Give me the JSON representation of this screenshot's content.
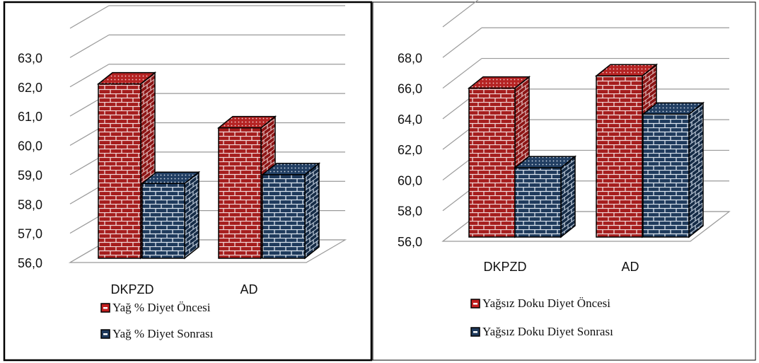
{
  "chart_data": [
    {
      "type": "bar",
      "categories": [
        "DKPZD",
        "AD"
      ],
      "series": [
        {
          "name": "Yağ % Diyet Öncesi",
          "values": [
            62.1,
            60.6
          ],
          "color": "#b22222"
        },
        {
          "name": "Yağ % Diyet Sonrası",
          "values": [
            58.7,
            59.0
          ],
          "color": "#1f3a5c"
        }
      ],
      "ylim": [
        56,
        63
      ],
      "ygrid_top": 64,
      "ystep": 1,
      "yticks": [
        "56,0",
        "57,0",
        "58,0",
        "59,0",
        "60,0",
        "61,0",
        "62,0",
        "63,0"
      ],
      "legend": "bottom",
      "grid": true
    },
    {
      "type": "bar",
      "categories": [
        "DKPZD",
        "AD"
      ],
      "series": [
        {
          "name": "Yağsız Doku Diyet Öncesi",
          "values": [
            66.0,
            66.8
          ],
          "color": "#b22222"
        },
        {
          "name": "Yağsız Doku Diyet Sonrası",
          "values": [
            60.8,
            64.3
          ],
          "color": "#1f3a5c"
        }
      ],
      "ylim": [
        56,
        68
      ],
      "ygrid_top": 70,
      "ystep": 2,
      "yticks": [
        "56,0",
        "58,0",
        "60,0",
        "62,0",
        "64,0",
        "66,0",
        "68,0"
      ],
      "legend": "bottom",
      "grid": true
    }
  ]
}
